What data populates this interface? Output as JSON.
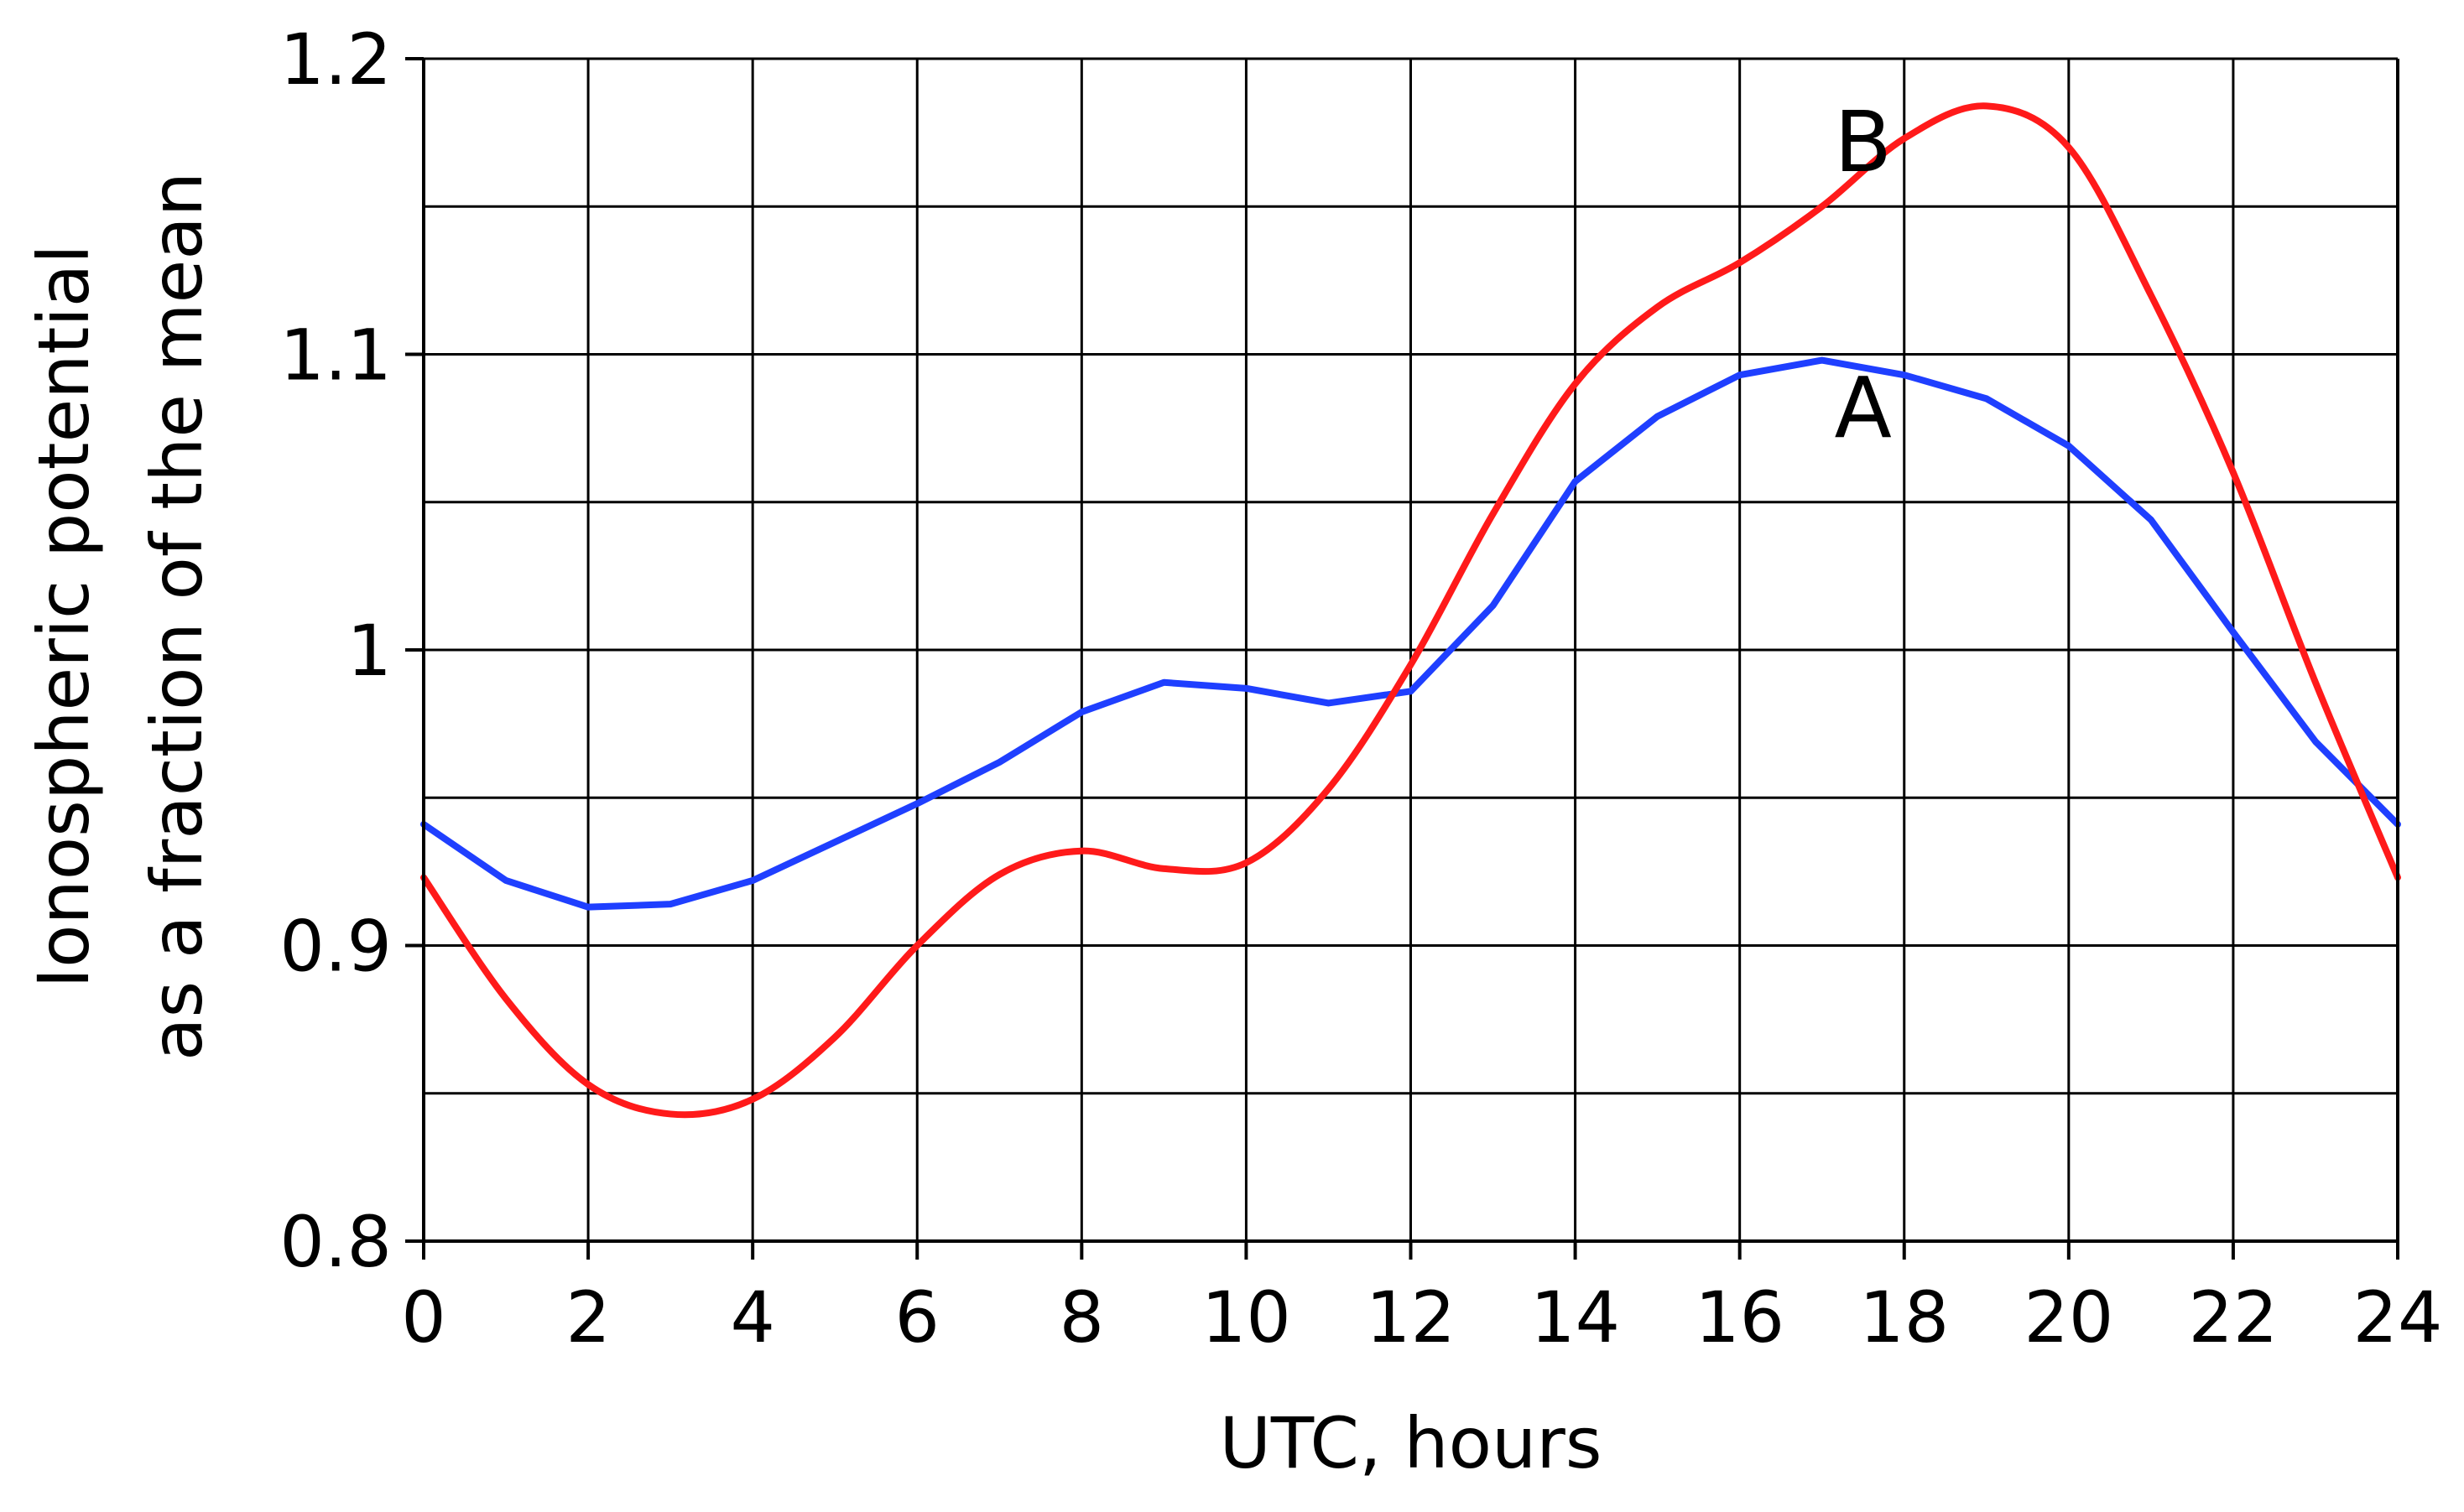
{
  "chart_data": {
    "type": "line",
    "xlabel": "UTC, hours",
    "ylabel_lines": [
      "Ionospheric potential",
      "as a fraction of the mean"
    ],
    "xlim": [
      0,
      24
    ],
    "ylim": [
      0.8,
      1.2
    ],
    "x_ticks": [
      0,
      2,
      4,
      6,
      8,
      10,
      12,
      14,
      16,
      18,
      20,
      22,
      24
    ],
    "y_ticks": [
      0.8,
      0.9,
      1,
      1.1,
      1.2
    ],
    "y_tick_labels": [
      "0.8",
      "0.9",
      "1",
      "1.1",
      "1.2"
    ],
    "grid": true,
    "x_grid_step": 2,
    "y_grid_step": 0.05,
    "legend": "none",
    "series": [
      {
        "name": "A",
        "color": "#1f3fff",
        "smooth": false,
        "x": [
          0,
          1,
          2,
          3,
          4,
          5,
          6,
          7,
          8,
          9,
          10,
          11,
          12,
          13,
          14,
          15,
          16,
          17,
          18,
          19,
          20,
          21,
          22,
          23,
          24
        ],
        "y": [
          0.941,
          0.922,
          0.913,
          0.914,
          0.922,
          0.935,
          0.948,
          0.962,
          0.979,
          0.989,
          0.987,
          0.982,
          0.986,
          1.015,
          1.057,
          1.079,
          1.093,
          1.098,
          1.093,
          1.085,
          1.069,
          1.044,
          1.006,
          0.969,
          0.941
        ]
      },
      {
        "name": "B",
        "color": "#ff1a1a",
        "smooth": true,
        "x": [
          0,
          1,
          2,
          3,
          4,
          5,
          6,
          7,
          8,
          9,
          10,
          11,
          12,
          13,
          14,
          15,
          16,
          17,
          18,
          19,
          20,
          21,
          22,
          23,
          24
        ],
        "y": [
          0.923,
          0.882,
          0.853,
          0.843,
          0.848,
          0.869,
          0.9,
          0.924,
          0.932,
          0.926,
          0.928,
          0.953,
          0.995,
          1.046,
          1.09,
          1.116,
          1.131,
          1.15,
          1.173,
          1.184,
          1.17,
          1.12,
          1.06,
          0.989,
          0.923
        ]
      }
    ],
    "annotations": [
      {
        "text": "B",
        "x": 17.5,
        "y": 1.162
      },
      {
        "text": "A",
        "x": 17.5,
        "y": 1.072
      }
    ]
  }
}
